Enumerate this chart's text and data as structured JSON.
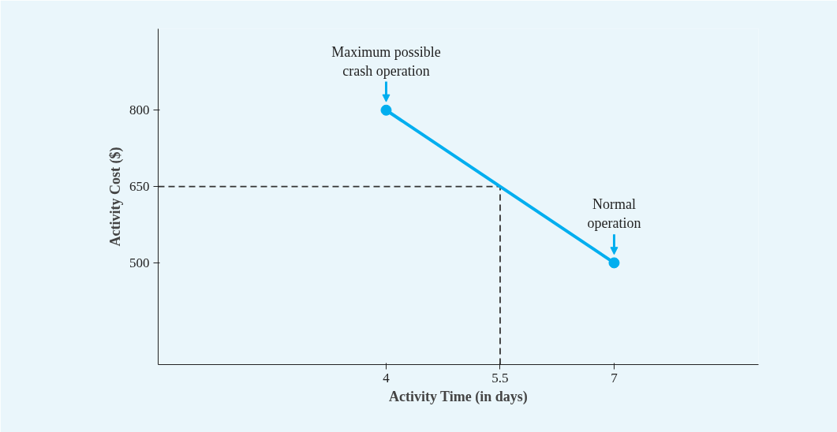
{
  "chart_data": {
    "type": "line",
    "xlabel": "Activity Time (in days)",
    "ylabel": "Activity Cost ($)",
    "x": [
      4,
      7
    ],
    "values": [
      800,
      500
    ],
    "color": "#00aeef",
    "marker": "circle",
    "line_style": "solid",
    "xlim": [
      1,
      8.9
    ],
    "ylim": [
      300,
      960
    ],
    "xticks": [
      4,
      5.5,
      7
    ],
    "yticks": [
      500,
      650,
      800
    ],
    "grid": false,
    "ref_lines": [
      {
        "axis": "y",
        "value": 650,
        "color": "#333333",
        "line_style": "dashed"
      },
      {
        "axis": "x",
        "value": 5.5,
        "color": "#333333",
        "line_style": "dashed"
      }
    ],
    "annotations": [
      {
        "text": "Maximum possible\ncrash operation",
        "x": 4,
        "y": 800
      },
      {
        "text": "Normal\noperation",
        "x": 7,
        "y": 500
      }
    ]
  }
}
